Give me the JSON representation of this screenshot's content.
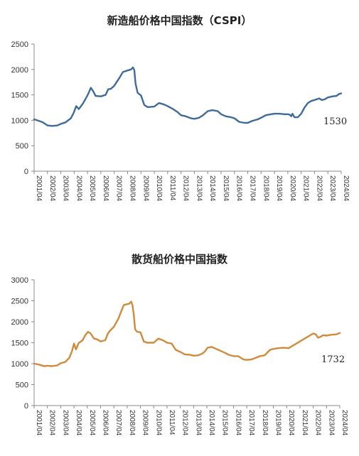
{
  "chart_data": [
    {
      "type": "line",
      "title": "新造船价格中国指数（CSPI）",
      "xlabel": "",
      "ylabel": "",
      "ylim": [
        0,
        2500
      ],
      "yticks": [
        "0",
        "500",
        "1000",
        "1500",
        "2000",
        "2500"
      ],
      "xticks": [
        "2001/04",
        "2002/04",
        "2003/04",
        "2004/04",
        "2005/04",
        "2006/04",
        "2007/04",
        "2008/04",
        "2009/04",
        "2010/04",
        "2011/04",
        "2012/04",
        "2013/04",
        "2014/04",
        "2015/04",
        "2016/04",
        "2017/04",
        "2018/04",
        "2019/04",
        "2020/04",
        "2021/04",
        "2022/04",
        "2023/04",
        "2024/04"
      ],
      "color": "#3d6b9a",
      "grid": false,
      "end_label": "1530",
      "series": [
        {
          "x": [
            2001.25,
            2001.6,
            2001.9,
            2002.25,
            2002.6,
            2003.0,
            2003.25,
            2003.6,
            2004.0,
            2004.2,
            2004.4,
            2004.6,
            2004.9,
            2005.1,
            2005.3,
            2005.5,
            2005.7,
            2005.85,
            2006.25,
            2006.6,
            2006.8,
            2007.0,
            2007.25,
            2007.6,
            2007.9,
            2008.25,
            2008.5,
            2008.65,
            2008.75,
            2008.85,
            2009.0,
            2009.25,
            2009.5,
            2009.75,
            2010.25,
            2010.6,
            2010.75,
            2011.0,
            2011.25,
            2011.6,
            2012.0,
            2012.25,
            2012.6,
            2013.0,
            2013.25,
            2013.6,
            2013.9,
            2014.25,
            2014.6,
            2015.0,
            2015.25,
            2015.6,
            2016.0,
            2016.25,
            2016.6,
            2017.0,
            2017.25,
            2017.6,
            2018.0,
            2018.25,
            2018.6,
            2019.0,
            2019.25,
            2019.6,
            2020.0,
            2020.25,
            2020.4,
            2020.5,
            2020.6,
            2020.75,
            2021.0,
            2021.25,
            2021.5,
            2021.75,
            2022.0,
            2022.25,
            2022.6,
            2022.8,
            2023.0,
            2023.25,
            2023.6,
            2023.9,
            2024.1,
            2024.25
          ],
          "y": [
            1020,
            990,
            960,
            900,
            890,
            900,
            930,
            960,
            1040,
            1140,
            1280,
            1220,
            1330,
            1420,
            1520,
            1640,
            1560,
            1480,
            1470,
            1500,
            1610,
            1620,
            1680,
            1820,
            1950,
            1980,
            2000,
            2040,
            1990,
            1720,
            1540,
            1490,
            1300,
            1260,
            1270,
            1340,
            1330,
            1310,
            1280,
            1230,
            1160,
            1100,
            1080,
            1040,
            1030,
            1050,
            1100,
            1180,
            1200,
            1180,
            1120,
            1080,
            1060,
            1040,
            970,
            950,
            950,
            990,
            1020,
            1050,
            1100,
            1120,
            1130,
            1130,
            1120,
            1120,
            1110,
            1080,
            1130,
            1060,
            1060,
            1130,
            1250,
            1340,
            1380,
            1400,
            1430,
            1400,
            1410,
            1450,
            1470,
            1480,
            1520,
            1530
          ]
        }
      ]
    },
    {
      "type": "line",
      "title": "散货船价格中国指数",
      "xlabel": "",
      "ylabel": "",
      "ylim": [
        0,
        3000
      ],
      "yticks": [
        "0",
        "500",
        "1000",
        "1500",
        "2000",
        "2500",
        "3000"
      ],
      "xticks": [
        "2001/04",
        "2002/04",
        "2003/04",
        "2004/04",
        "2005/04",
        "2006/04",
        "2007/04",
        "2008/04",
        "2009/04",
        "2010/04",
        "2011/04",
        "2012/04",
        "2013/04",
        "2014/04",
        "2015/04",
        "2016/04",
        "2017/04",
        "2018/04",
        "2019/04",
        "2020/04",
        "2021/04",
        "2022/04",
        "2023/04",
        "2024/04"
      ],
      "color": "#d08a3c",
      "grid": false,
      "end_label": "1732",
      "series": [
        {
          "x": [
            2001.25,
            2001.6,
            2002.0,
            2002.25,
            2002.6,
            2003.0,
            2003.25,
            2003.6,
            2003.9,
            2004.1,
            2004.25,
            2004.4,
            2004.6,
            2004.9,
            2005.1,
            2005.3,
            2005.5,
            2005.75,
            2006.0,
            2006.25,
            2006.6,
            2006.8,
            2007.0,
            2007.25,
            2007.6,
            2007.8,
            2008.0,
            2008.25,
            2008.4,
            2008.55,
            2008.65,
            2008.75,
            2008.85,
            2009.0,
            2009.25,
            2009.5,
            2009.75,
            2010.25,
            2010.6,
            2010.75,
            2011.0,
            2011.25,
            2011.6,
            2011.9,
            2012.25,
            2012.6,
            2013.0,
            2013.25,
            2013.6,
            2013.9,
            2014.1,
            2014.3,
            2014.6,
            2014.9,
            2015.25,
            2015.6,
            2015.9,
            2016.25,
            2016.6,
            2017.0,
            2017.25,
            2017.6,
            2018.0,
            2018.25,
            2018.6,
            2019.0,
            2019.25,
            2019.6,
            2020.0,
            2020.4,
            2022.25,
            2022.45,
            2022.6,
            2022.8,
            2023.0,
            2023.25,
            2023.6,
            2024.0,
            2024.25
          ],
          "y": [
            1000,
            980,
            940,
            950,
            940,
            960,
            1010,
            1040,
            1140,
            1300,
            1480,
            1340,
            1490,
            1560,
            1680,
            1760,
            1720,
            1600,
            1580,
            1530,
            1560,
            1720,
            1800,
            1880,
            2080,
            2250,
            2400,
            2420,
            2430,
            2480,
            2400,
            2170,
            1820,
            1760,
            1750,
            1530,
            1500,
            1500,
            1600,
            1580,
            1550,
            1500,
            1480,
            1330,
            1280,
            1220,
            1210,
            1190,
            1200,
            1240,
            1290,
            1380,
            1400,
            1360,
            1310,
            1260,
            1210,
            1180,
            1180,
            1100,
            1090,
            1100,
            1150,
            1180,
            1200,
            1330,
            1350,
            1370,
            1380,
            1370,
            1720,
            1700,
            1620,
            1640,
            1680,
            1670,
            1690,
            1700,
            1732
          ]
        }
      ]
    }
  ]
}
